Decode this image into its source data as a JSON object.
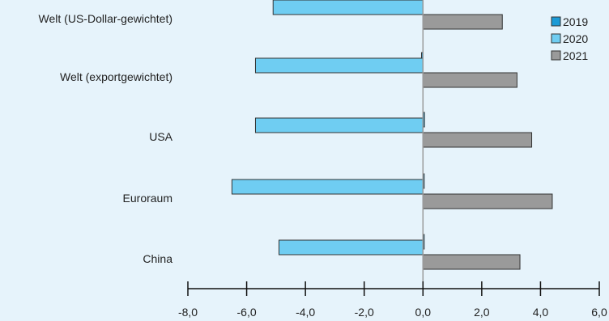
{
  "chart_data": {
    "type": "bar",
    "orientation": "horizontal",
    "categories": [
      "Welt (US-Dollar-gewichtet)",
      "Welt (exportgewichtet)",
      "USA",
      "Euroraum",
      "China"
    ],
    "series": [
      {
        "name": "2019",
        "values": [
          -0.05,
          -0.05,
          0.05,
          0.0,
          0.0
        ],
        "color": "#1a9ad6"
      },
      {
        "name": "2020",
        "values": [
          -5.1,
          -5.7,
          -5.7,
          -6.5,
          -4.9
        ],
        "color": "#6fcdf2"
      },
      {
        "name": "2021",
        "values": [
          2.7,
          3.2,
          3.7,
          4.4,
          3.3
        ],
        "color": "#9a9a9a"
      }
    ],
    "xlim": [
      -8,
      6
    ],
    "xticks": [
      "-8,0",
      "-6,0",
      "-4,0",
      "-2,0",
      "0,0",
      "2,0",
      "4,0",
      "6,0"
    ],
    "title": "",
    "xlabel": "",
    "ylabel": "",
    "legend_position": "top-right",
    "grid": false
  }
}
